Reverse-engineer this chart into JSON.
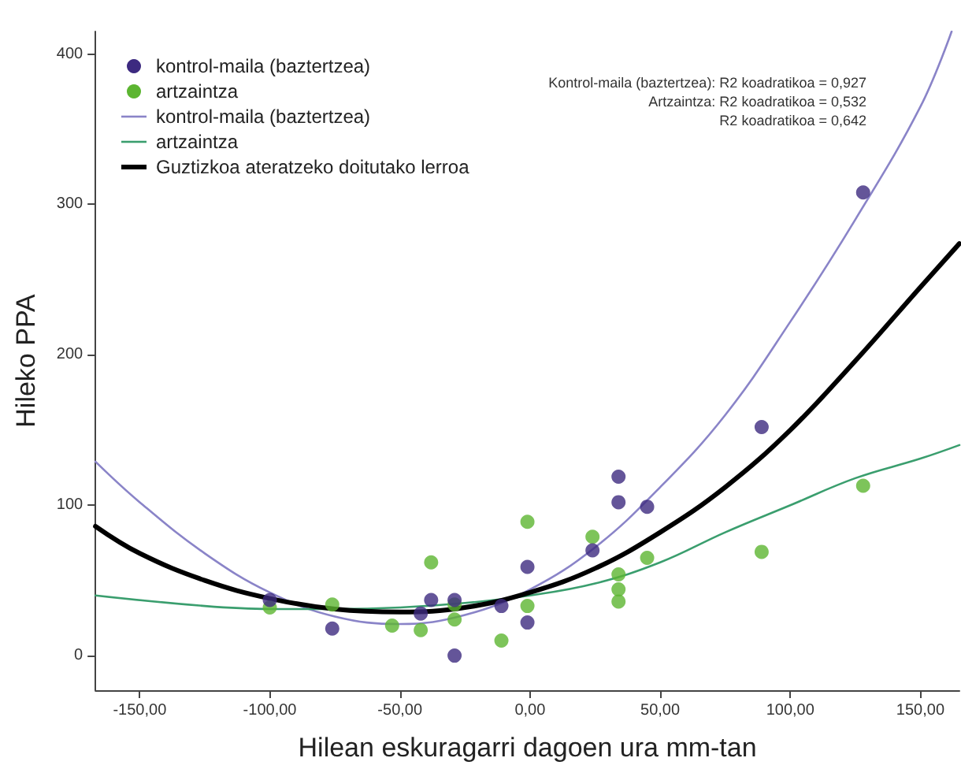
{
  "chart_data": {
    "type": "scatter",
    "xlabel": "Hilean eskuragarri dagoen ura mm-tan",
    "ylabel": "Hileko PPA",
    "xlim": [
      -167,
      165
    ],
    "xticks": [
      {
        "value": -150,
        "label": "-150,00"
      },
      {
        "value": -100,
        "label": "-100,00"
      },
      {
        "value": -50,
        "label": "-50,00"
      },
      {
        "value": 0,
        "label": "0,00"
      },
      {
        "value": 50,
        "label": "50,00"
      },
      {
        "value": 100,
        "label": "100,00"
      },
      {
        "value": 150,
        "label": "150,00"
      }
    ],
    "ylim": [
      -23,
      415
    ],
    "yticks": [
      0,
      100,
      200,
      300,
      400
    ],
    "grid": false,
    "legend": "top left",
    "marker": "circle",
    "series": [
      {
        "name": "kontrol-maila (baztertzea)",
        "color": "#3d2a80",
        "x": [
          -100,
          -76,
          -42,
          -38,
          -29,
          -29,
          -11,
          -1,
          -1,
          24,
          34,
          34,
          45,
          89,
          128
        ],
        "values": [
          37,
          18,
          28,
          37,
          37,
          0,
          33,
          59,
          22,
          70,
          119,
          102,
          99,
          152,
          308
        ]
      },
      {
        "name": "artzaintza",
        "color": "#5cb531",
        "x": [
          -100,
          -76,
          -53,
          -42,
          -38,
          -29,
          -29,
          -11,
          -1,
          -1,
          24,
          34,
          34,
          34,
          45,
          89,
          128
        ],
        "values": [
          32,
          34,
          20,
          17,
          62,
          34,
          24,
          10,
          89,
          33,
          79,
          54,
          44,
          36,
          65,
          69,
          113
        ]
      },
      {
        "name": "kontrol-maila (baztertzea)",
        "type": "line",
        "color": "#8a84c8",
        "marker": "none",
        "x": [
          -167,
          -150,
          -125,
          -100,
          -75,
          -50,
          -25,
          0,
          25,
          50,
          75,
          100,
          125,
          150,
          162
        ],
        "values": [
          129,
          102,
          68,
          42,
          26,
          21,
          27,
          44,
          72,
          112,
          160,
          222,
          290,
          365,
          415
        ]
      },
      {
        "name": "artzaintza",
        "type": "line",
        "color": "#3a9e6e",
        "marker": "none",
        "x": [
          -167,
          -125,
          -100,
          -75,
          -50,
          -25,
          0,
          25,
          50,
          75,
          100,
          125,
          150,
          165
        ],
        "values": [
          40,
          33,
          31,
          31,
          32,
          35,
          40,
          48,
          62,
          82,
          100,
          118,
          131,
          140
        ]
      },
      {
        "name": "Guztizkoa ateratzeko doitutako lerroa",
        "type": "line",
        "color": "#000000",
        "marker": "none",
        "x": [
          -167,
          -150,
          -125,
          -100,
          -75,
          -50,
          -25,
          0,
          25,
          50,
          75,
          100,
          125,
          150,
          165
        ],
        "values": [
          86,
          68,
          50,
          38,
          31,
          29,
          32,
          42,
          58,
          82,
          112,
          150,
          196,
          245,
          274
        ]
      }
    ],
    "annotations": [
      "Kontrol-maila (baztertzea): R2 koadratikoa = 0,927",
      "Artzaintza: R2 koadratikoa = 0,532",
      "R2 koadratikoa = 0,642"
    ]
  }
}
